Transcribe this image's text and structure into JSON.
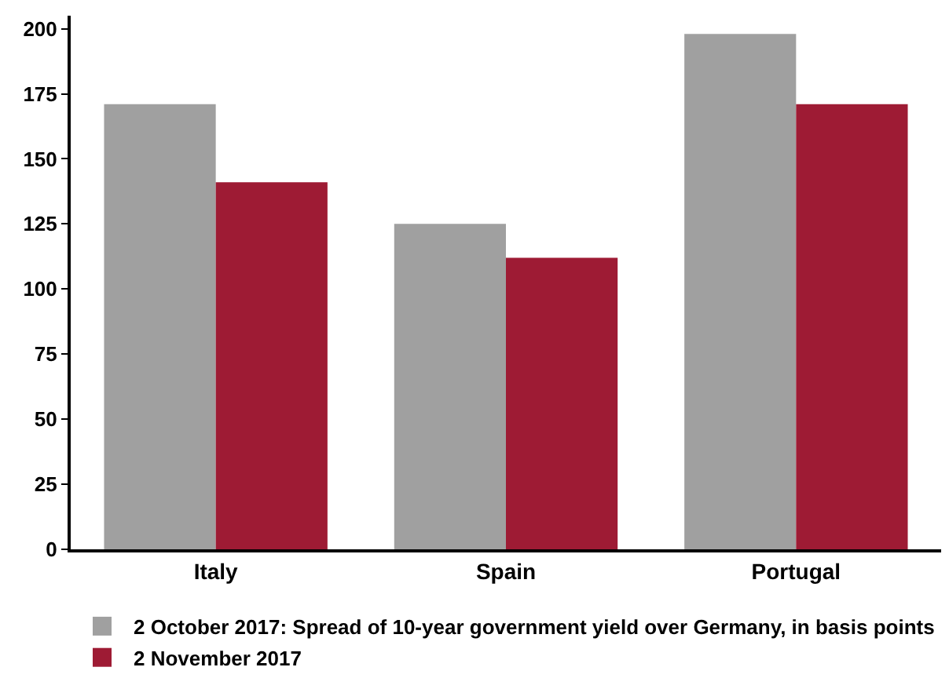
{
  "chart_data": {
    "type": "bar",
    "categories": [
      "Italy",
      "Spain",
      "Portugal"
    ],
    "series": [
      {
        "name": "2 October 2017: Spread of 10-year government yield over Germany, in basis points",
        "color": "#a0a0a0",
        "values": [
          171,
          125,
          198
        ]
      },
      {
        "name": "2 November 2017",
        "color": "#9e1b34",
        "values": [
          141,
          112,
          171
        ]
      }
    ],
    "ylim": [
      0,
      205
    ],
    "yticks": [
      0,
      25,
      50,
      75,
      100,
      125,
      150,
      175,
      200
    ],
    "legend": "bottom left"
  }
}
